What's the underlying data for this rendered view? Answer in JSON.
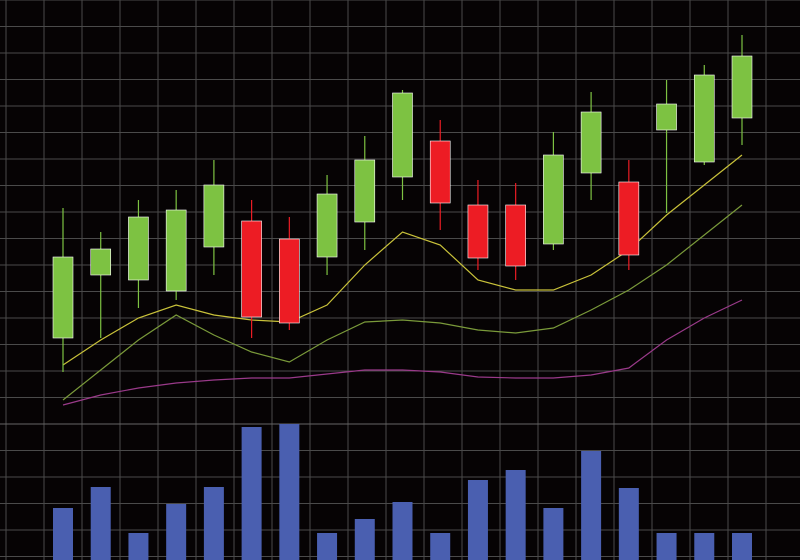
{
  "chart_data": {
    "type": "candlestick",
    "grid": true,
    "ylim": [
      0,
      420
    ],
    "up_color": "#7dc242",
    "down_color": "#ed1c24",
    "open": [
      82,
      145,
      140,
      129,
      173,
      199,
      181,
      163,
      198,
      243,
      279,
      215,
      215,
      176,
      247,
      238,
      290,
      258,
      302
    ],
    "close": [
      163,
      171,
      203,
      210,
      235,
      103,
      97,
      226,
      260,
      327,
      217,
      162,
      154,
      265,
      308,
      165,
      316,
      345,
      364
    ],
    "high": [
      212,
      188,
      220,
      230,
      260,
      220,
      203,
      245,
      284,
      330,
      300,
      240,
      237,
      288,
      328,
      260,
      340,
      355,
      385
    ],
    "low": [
      48,
      82,
      112,
      120,
      145,
      82,
      90,
      145,
      170,
      220,
      190,
      150,
      140,
      170,
      220,
      150,
      207,
      255,
      275
    ],
    "series": [
      {
        "color": "#c9c23a",
        "values": [
          55,
          80,
          102,
          115,
          105,
          100,
          98,
          115,
          155,
          188,
          175,
          140,
          130,
          130,
          145,
          170,
          205,
          235,
          265
        ]
      },
      {
        "color": "#7a9a3a",
        "values": [
          20,
          50,
          80,
          105,
          85,
          68,
          58,
          80,
          98,
          100,
          97,
          90,
          87,
          92,
          110,
          130,
          155,
          185,
          215
        ]
      },
      {
        "color": "#9a3a8a",
        "values": [
          15,
          25,
          32,
          37,
          40,
          42,
          42,
          46,
          50,
          50,
          48,
          43,
          42,
          42,
          45,
          52,
          80,
          102,
          120
        ]
      }
    ],
    "volume": {
      "color": "#4a5fb0",
      "ylim": [
        0,
        135
      ],
      "values": [
        52,
        73,
        27,
        56,
        73,
        133,
        136,
        27,
        41,
        58,
        27,
        80,
        90,
        52,
        109,
        72,
        27,
        27,
        27
      ]
    }
  }
}
